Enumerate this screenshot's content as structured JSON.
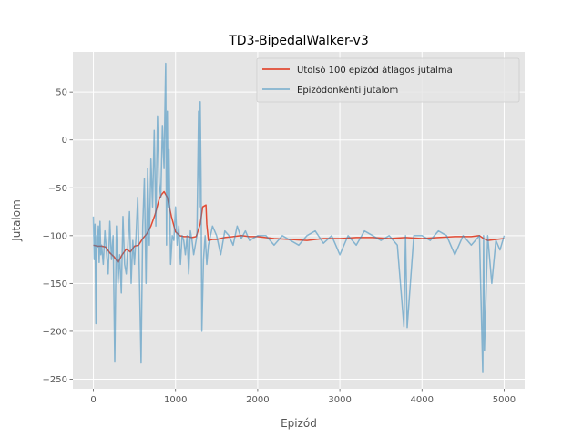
{
  "chart_data": {
    "type": "line",
    "title": "TD3-BipedalWalker-v3",
    "xlabel": "Epizód",
    "ylabel": "Jutalom",
    "xlim": [
      -250,
      5250
    ],
    "ylim": [
      -260,
      92
    ],
    "xticks": [
      0,
      1000,
      2000,
      3000,
      4000,
      5000
    ],
    "yticks": [
      -250,
      -200,
      -150,
      -100,
      -50,
      0,
      50
    ],
    "grid": true,
    "legend_position": "top-right",
    "series": [
      {
        "name": "Utolsó 100 epizód átlagos jutalma",
        "color": "#e24a33",
        "x": [
          0,
          50,
          100,
          150,
          200,
          250,
          300,
          350,
          400,
          450,
          500,
          550,
          600,
          650,
          700,
          750,
          800,
          830,
          860,
          880,
          900,
          950,
          1000,
          1050,
          1100,
          1150,
          1200,
          1250,
          1300,
          1330,
          1350,
          1370,
          1380,
          1400,
          1450,
          1500,
          1600,
          1700,
          1800,
          1900,
          2000,
          2200,
          2400,
          2600,
          2800,
          3000,
          3200,
          3400,
          3600,
          3800,
          4000,
          4200,
          4400,
          4600,
          4700,
          4750,
          4800,
          4900,
          5000
        ],
        "y": [
          -110,
          -111,
          -111,
          -112,
          -118,
          -122,
          -128,
          -120,
          -114,
          -117,
          -111,
          -110,
          -103,
          -98,
          -90,
          -78,
          -62,
          -57,
          -54,
          -57,
          -60,
          -80,
          -96,
          -100,
          -101,
          -101,
          -102,
          -101,
          -88,
          -70,
          -69,
          -68,
          -88,
          -105,
          -104,
          -104,
          -102,
          -101,
          -100,
          -101,
          -101,
          -103,
          -104,
          -105,
          -103,
          -103,
          -102,
          -102,
          -103,
          -102,
          -103,
          -102,
          -101,
          -101,
          -100,
          -103,
          -105,
          -104,
          -103
        ]
      },
      {
        "name": "Epizódonkénti jutalom",
        "color": "#348abd",
        "x": [
          0,
          10,
          20,
          30,
          40,
          50,
          60,
          70,
          80,
          90,
          100,
          120,
          140,
          160,
          180,
          200,
          220,
          240,
          260,
          280,
          300,
          320,
          340,
          360,
          380,
          400,
          420,
          440,
          460,
          480,
          500,
          520,
          540,
          560,
          580,
          600,
          620,
          640,
          660,
          680,
          700,
          720,
          740,
          760,
          780,
          800,
          820,
          840,
          860,
          870,
          880,
          890,
          900,
          910,
          920,
          940,
          960,
          980,
          1000,
          1020,
          1040,
          1060,
          1080,
          1100,
          1120,
          1140,
          1160,
          1180,
          1200,
          1220,
          1240,
          1260,
          1280,
          1290,
          1300,
          1310,
          1320,
          1340,
          1360,
          1380,
          1400,
          1450,
          1500,
          1550,
          1600,
          1650,
          1700,
          1750,
          1800,
          1850,
          1900,
          2000,
          2100,
          2200,
          2300,
          2400,
          2500,
          2600,
          2700,
          2800,
          2900,
          3000,
          3100,
          3200,
          3300,
          3400,
          3500,
          3600,
          3700,
          3780,
          3800,
          3820,
          3900,
          4000,
          4100,
          4200,
          4300,
          4400,
          4500,
          4600,
          4700,
          4740,
          4750,
          4760,
          4800,
          4850,
          4900,
          4950,
          5000
        ],
        "y": [
          -80,
          -125,
          -88,
          -192,
          -100,
          -112,
          -90,
          -128,
          -85,
          -120,
          -110,
          -130,
          -95,
          -118,
          -140,
          -85,
          -125,
          -100,
          -232,
          -90,
          -150,
          -120,
          -160,
          -80,
          -130,
          -140,
          -110,
          -75,
          -150,
          -105,
          -130,
          -100,
          -60,
          -140,
          -233,
          -90,
          -40,
          -150,
          -30,
          -110,
          -20,
          -70,
          10,
          -90,
          25,
          -45,
          -60,
          15,
          -30,
          30,
          80,
          -110,
          30,
          -70,
          -10,
          -130,
          -100,
          -105,
          -70,
          -110,
          -90,
          -130,
          -100,
          -105,
          -120,
          -100,
          -140,
          -95,
          -105,
          -120,
          -110,
          -100,
          30,
          -70,
          40,
          -40,
          -200,
          -125,
          -100,
          -130,
          -110,
          -90,
          -100,
          -120,
          -95,
          -100,
          -110,
          -90,
          -103,
          -95,
          -105,
          -100,
          -100,
          -110,
          -100,
          -105,
          -110,
          -100,
          -95,
          -108,
          -100,
          -120,
          -100,
          -110,
          -95,
          -100,
          -105,
          -100,
          -110,
          -195,
          -100,
          -196,
          -100,
          -100,
          -105,
          -95,
          -100,
          -120,
          -100,
          -110,
          -100,
          -243,
          -100,
          -220,
          -100,
          -150,
          -105,
          -115,
          -100
        ]
      }
    ]
  }
}
